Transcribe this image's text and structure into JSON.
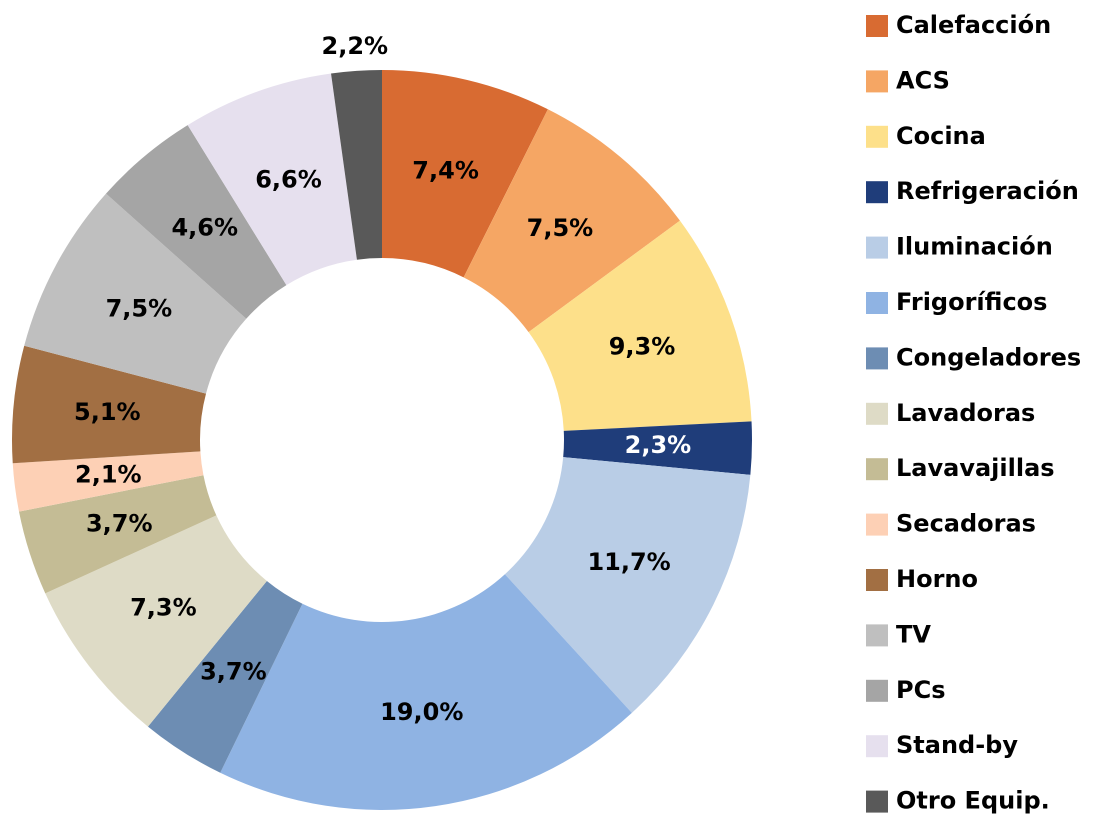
{
  "chart_data": {
    "type": "donut",
    "categories": [
      "Calefacción",
      "ACS",
      "Cocina",
      "Refrigeración",
      "Iluminación",
      "Frigoríficos",
      "Congeladores",
      "Lavadoras",
      "Lavavajillas",
      "Secadoras",
      "Horno",
      "TV",
      "PCs",
      "Stand-by",
      "Otro Equip."
    ],
    "values": [
      7.4,
      7.5,
      9.3,
      2.3,
      11.7,
      19.0,
      3.7,
      7.3,
      3.7,
      2.1,
      5.1,
      7.5,
      4.6,
      6.6,
      2.2
    ],
    "value_labels": [
      "7,4%",
      "7,5%",
      "9,3%",
      "2,3%",
      "11,7%",
      "19,0%",
      "3,7%",
      "7,3%",
      "3,7%",
      "2,1%",
      "5,1%",
      "7,5%",
      "4,6%",
      "6,6%",
      "2,2%"
    ],
    "colors": [
      "#d86b32",
      "#f5a664",
      "#fde08a",
      "#1f3d7a",
      "#b9cde6",
      "#8fb3e3",
      "#6d8db3",
      "#dedbc6",
      "#c4bc95",
      "#fdd0b5",
      "#a26f43",
      "#bfbfbf",
      "#a5a5a5",
      "#e6e0ee",
      "#595959"
    ],
    "legend": "right"
  }
}
